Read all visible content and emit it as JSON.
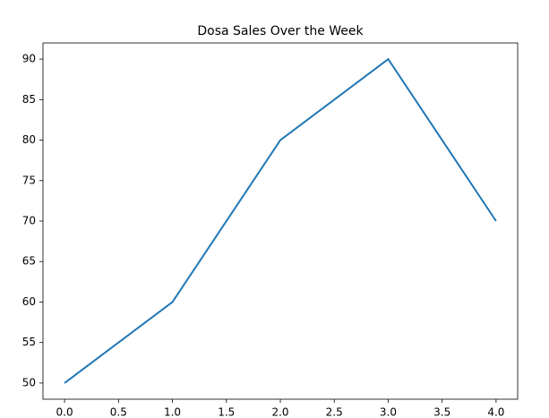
{
  "chart_data": {
    "type": "line",
    "title": "Dosa Sales Over the Week",
    "x": [
      0,
      1,
      2,
      3,
      4
    ],
    "values": [
      50,
      60,
      80,
      90,
      70
    ],
    "color": "#1f77b4",
    "xlim": [
      -0.2,
      4.2
    ],
    "xticks": [
      {
        "value": 0,
        "label": "0.0"
      },
      {
        "value": 0.5,
        "label": "0.5"
      },
      {
        "value": 1,
        "label": "1.0"
      },
      {
        "value": 1.5,
        "label": "1.5"
      },
      {
        "value": 2,
        "label": "2.0"
      },
      {
        "value": 2.5,
        "label": "2.5"
      },
      {
        "value": 3,
        "label": "3.0"
      },
      {
        "value": 3.5,
        "label": "3.5"
      },
      {
        "value": 4,
        "label": "4.0"
      }
    ],
    "ylim": [
      48,
      92
    ],
    "yticks": [
      50,
      55,
      60,
      65,
      70,
      75,
      80,
      85,
      90
    ],
    "grid": false
  }
}
